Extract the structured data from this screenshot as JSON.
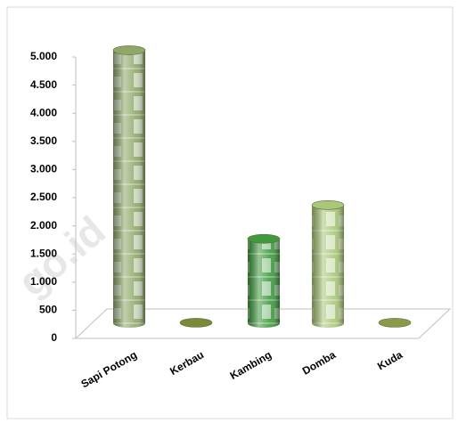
{
  "chart_data": {
    "type": "bar",
    "categories": [
      "Sapi Potong",
      "Kerbau",
      "Kambing",
      "Domba",
      "Kuda"
    ],
    "values": [
      4850,
      10,
      1500,
      2100,
      10
    ],
    "colors": [
      "#8fa86a",
      "#7a8a3a",
      "#3f9a3f",
      "#a9c879",
      "#8a9a4a"
    ],
    "ylim": [
      0,
      5000
    ],
    "yticks": [
      0,
      500,
      {
        "value": 1000,
        "label": "1.000"
      },
      {
        "value": 1500,
        "label": "1.500"
      },
      {
        "value": 2000,
        "label": "2.000"
      },
      {
        "value": 2500,
        "label": "2.500"
      },
      {
        "value": 3000,
        "label": "3.000"
      },
      {
        "value": 3500,
        "label": "3.500"
      },
      {
        "value": 4000,
        "label": "4.000"
      },
      {
        "value": 4500,
        "label": "4.500"
      },
      {
        "value": 5000,
        "label": "5.000"
      }
    ],
    "watermark": "go.id"
  }
}
